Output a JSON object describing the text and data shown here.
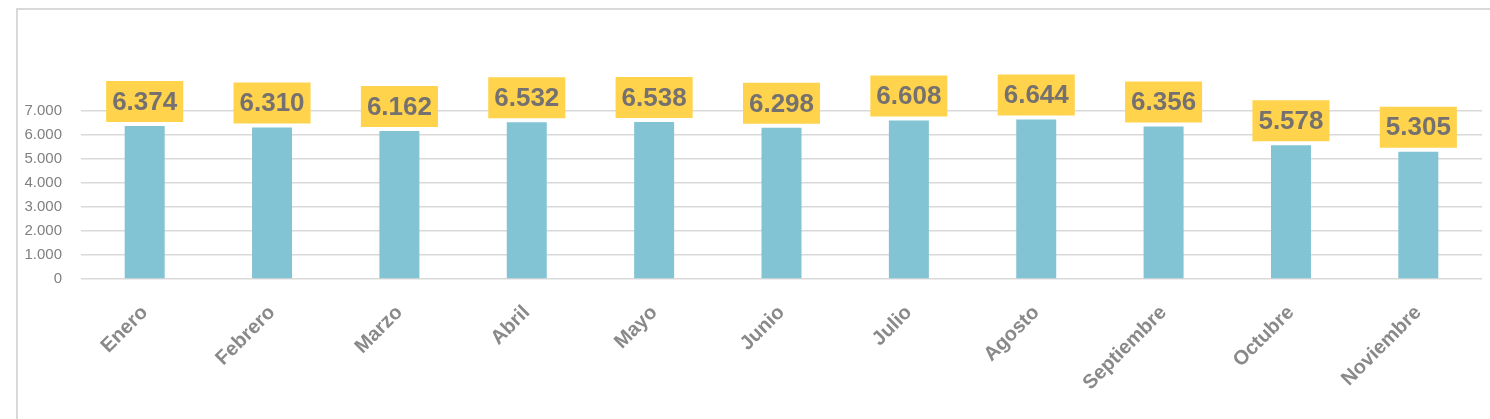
{
  "chart_data": {
    "type": "bar",
    "categories": [
      "Enero",
      "Febrero",
      "Marzo",
      "Abril",
      "Mayo",
      "Junio",
      "Julio",
      "Agosto",
      "Septiembre",
      "Octubre",
      "Noviembre"
    ],
    "values": [
      6374,
      6310,
      6162,
      6532,
      6538,
      6298,
      6608,
      6644,
      6356,
      5578,
      5305
    ],
    "value_labels": [
      "6.374",
      "6.310",
      "6.162",
      "6.532",
      "6.538",
      "6.298",
      "6.608",
      "6.644",
      "6.356",
      "5.578",
      "5.305"
    ],
    "color": "#82c3d4",
    "ylim": [
      0,
      7000
    ],
    "yticks": [
      0,
      {
        "value": 1000,
        "label": "1.000"
      },
      {
        "value": 2000,
        "label": "2.000"
      },
      {
        "value": 3000,
        "label": "3.000"
      },
      {
        "value": 4000,
        "label": "4.000"
      },
      {
        "value": 5000,
        "label": "5.000"
      },
      {
        "value": 6000,
        "label": "6.000"
      },
      {
        "value": 7000,
        "label": "7.000"
      }
    ],
    "grid": "y"
  }
}
